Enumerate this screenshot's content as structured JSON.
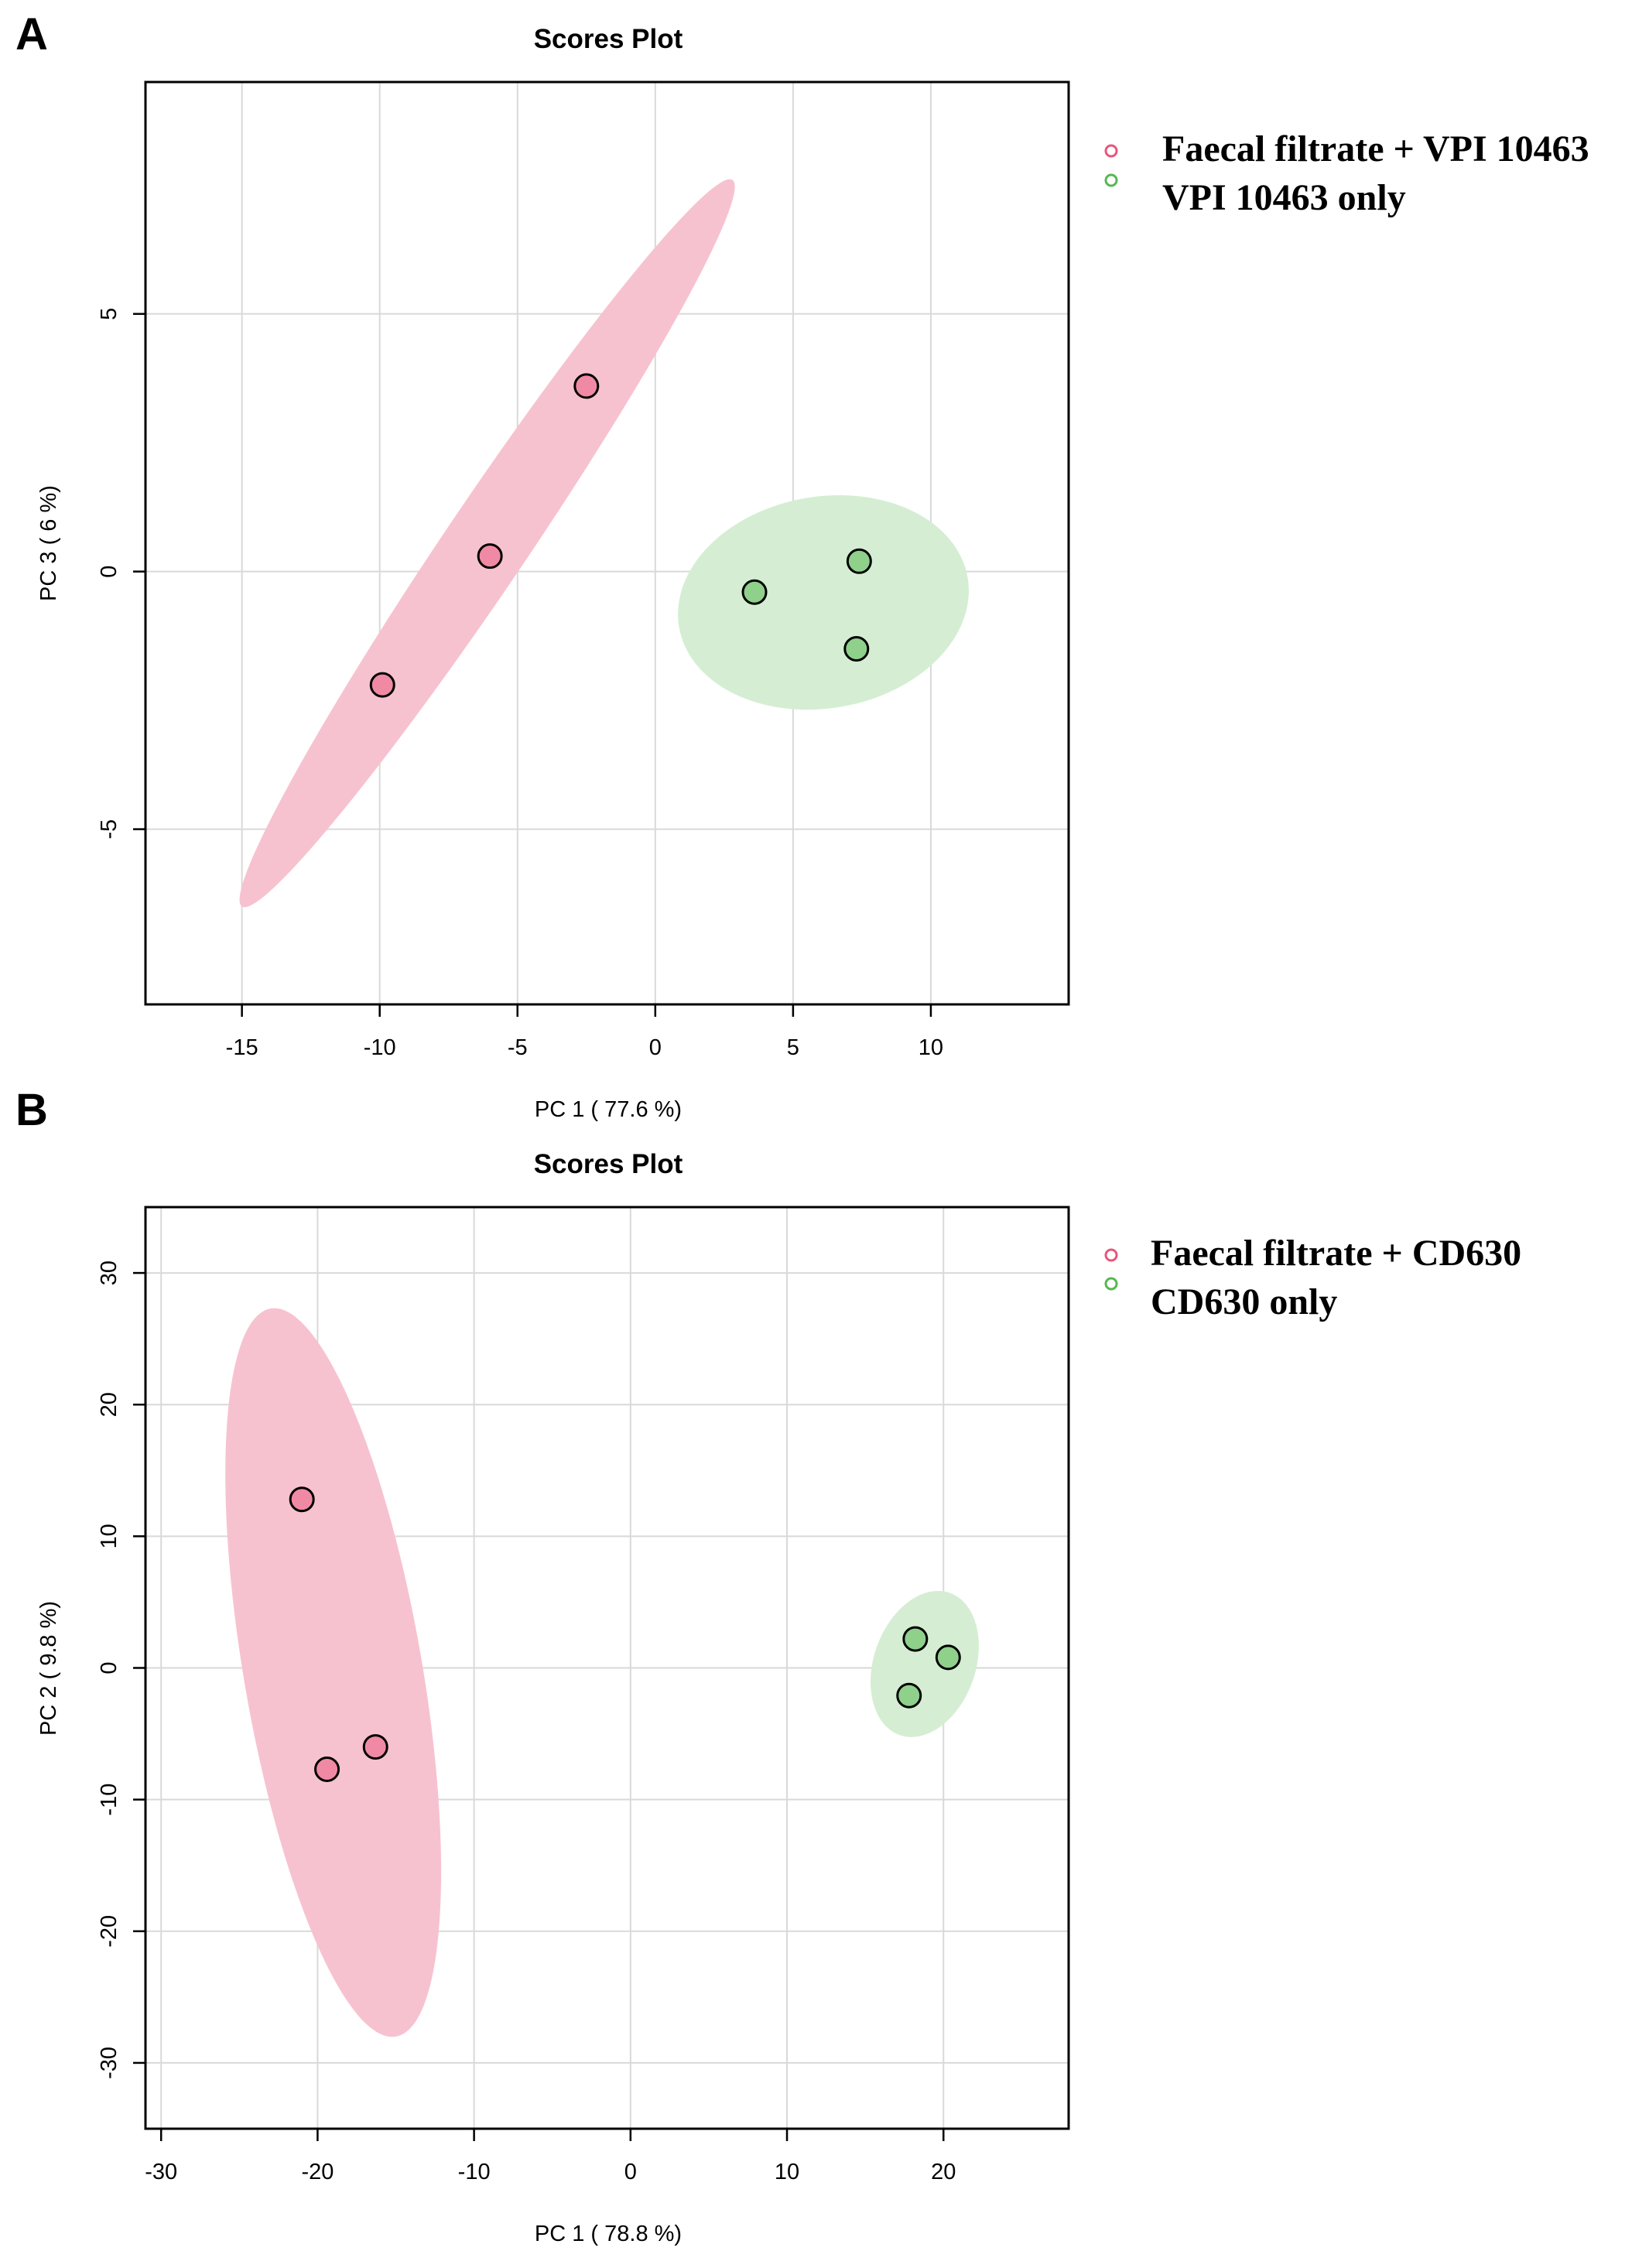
{
  "panels": [
    {
      "letter": "A",
      "legend": [
        {
          "label": "Faecal filtrate + VPI 10463",
          "color": "#e8557a"
        },
        {
          "label": "VPI 10463 only",
          "color": "#55b84e"
        }
      ]
    },
    {
      "letter": "B",
      "legend": [
        {
          "label": "Faecal filtrate + CD630",
          "color": "#e8557a"
        },
        {
          "label": "CD630 only",
          "color": "#55b84e"
        }
      ]
    }
  ],
  "chart_data": [
    {
      "type": "scatter",
      "title": "Scores Plot",
      "xlabel": "PC 1 ( 77.6 %)",
      "ylabel": "PC 3 ( 6 %)",
      "xlim": [
        -18.5,
        15
      ],
      "ylim": [
        -8.4,
        9.5
      ],
      "xticks": [
        -15,
        -10,
        -5,
        0,
        5,
        10
      ],
      "yticks": [
        -5,
        0,
        5
      ],
      "tick_labels_x": [
        "-15",
        "-10",
        "-5",
        "0",
        "5",
        "10"
      ],
      "tick_labels_y": [
        "-5",
        "0",
        "5"
      ],
      "grid": true,
      "series": [
        {
          "name": "Faecal filtrate + VPI 10463",
          "color": "#e8557a",
          "fill": "#f08aa4",
          "ellipse_color": "#f7c2cf",
          "points": [
            [
              -2.5,
              3.6
            ],
            [
              -6.0,
              0.3
            ],
            [
              -9.9,
              -2.2
            ]
          ],
          "ellipse": {
            "cx": -6.1,
            "cy": 0.55,
            "endpoints": [
              [
                -15.0,
                -6.5
              ],
              [
                2.8,
                7.6
              ]
            ],
            "minor_point": [
              -5.0,
              0.0
            ]
          }
        },
        {
          "name": "VPI 10463 only",
          "color": "#55b84e",
          "fill": "#8fd08b",
          "ellipse_color": "#d5eed3",
          "points": [
            [
              3.6,
              -0.4
            ],
            [
              7.4,
              0.2
            ],
            [
              7.3,
              -1.5
            ]
          ],
          "ellipse": {
            "cx": 6.1,
            "cy": -0.6,
            "endpoints": [
              [
                5.5,
                1.45
              ],
              [
                6.8,
                -2.6
              ]
            ],
            "minor_point": [
              11.4,
              -0.8
            ]
          }
        }
      ]
    },
    {
      "type": "scatter",
      "title": "Scores Plot",
      "xlabel": "PC 1 ( 78.8 %)",
      "ylabel": "PC 2 ( 9.8 %)",
      "xlim": [
        -31,
        28
      ],
      "ylim": [
        -35,
        35
      ],
      "xticks": [
        -30,
        -20,
        -10,
        0,
        10,
        20
      ],
      "yticks": [
        -30,
        -20,
        -10,
        0,
        10,
        20,
        30
      ],
      "tick_labels_x": [
        "-30",
        "-20",
        "-10",
        "0",
        "10",
        "20"
      ],
      "tick_labels_y": [
        "-30",
        "-20",
        "-10",
        "0",
        "10",
        "20",
        "30"
      ],
      "grid": true,
      "series": [
        {
          "name": "Faecal filtrate + CD630",
          "color": "#e8557a",
          "fill": "#f08aa4",
          "ellipse_color": "#f7c2cf",
          "points": [
            [
              -21.0,
              12.8
            ],
            [
              -19.4,
              -7.7
            ],
            [
              -16.3,
              -6.0
            ]
          ],
          "ellipse": {
            "cx": -19.0,
            "cy": -0.35,
            "endpoints": [
              [
                -23.0,
                27.3
              ],
              [
                -15.0,
                -28.0
              ]
            ],
            "minor_point": [
              -13.3,
              -0.35
            ]
          }
        },
        {
          "name": "CD630 only",
          "color": "#55b84e",
          "fill": "#8fd08b",
          "ellipse_color": "#d5eed3",
          "points": [
            [
              18.2,
              2.2
            ],
            [
              20.3,
              0.8
            ],
            [
              17.8,
              -2.1
            ]
          ],
          "ellipse": {
            "cx": 18.8,
            "cy": 0.3,
            "endpoints": [
              [
                20.4,
                5.7
              ],
              [
                17.2,
                -5.1
              ]
            ],
            "minor_point": [
              22.0,
              1.0
            ]
          }
        }
      ]
    }
  ]
}
